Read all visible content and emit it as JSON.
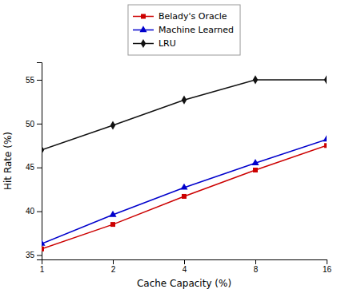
{
  "chart_data": {
    "type": "line",
    "x_label": "Cache Capacity (%)",
    "y_label": "Hit Rate (%)",
    "x": [
      1,
      2,
      4,
      8,
      16
    ],
    "series": [
      {
        "name": "Belady's Oracle",
        "color": "#cc0000",
        "marker": "square",
        "values": [
          35.7,
          38.5,
          41.7,
          44.7,
          47.5
        ]
      },
      {
        "name": "Machine Learned",
        "color": "#0000cc",
        "marker": "triangle",
        "values": [
          36.3,
          39.6,
          42.7,
          45.5,
          48.2
        ]
      },
      {
        "name": "LRU",
        "color": "#111111",
        "marker": "diamond",
        "values": [
          47.0,
          49.8,
          52.7,
          55.0,
          55.0
        ]
      }
    ],
    "log": "x",
    "xlim": [
      1,
      16
    ],
    "xticks": [
      1,
      2,
      4,
      8,
      16
    ],
    "ylim": [
      34.5,
      57
    ],
    "yticks": [
      35,
      40,
      45,
      50,
      55
    ],
    "grid": false,
    "legend": "top"
  }
}
